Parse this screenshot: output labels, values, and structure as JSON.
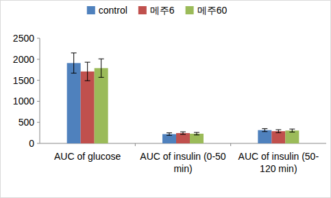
{
  "chart_data": {
    "type": "bar",
    "categories": [
      "AUC of glucose",
      "AUC of insulin (0-50 min)",
      "AUC of insulin (50-120 min)"
    ],
    "series": [
      {
        "name": "control",
        "color": "#4f81bd",
        "values": [
          1910,
          220,
          315
        ],
        "errors": [
          240,
          30,
          35
        ]
      },
      {
        "name": "메주6",
        "color": "#c0504d",
        "values": [
          1710,
          245,
          290
        ],
        "errors": [
          220,
          30,
          35
        ]
      },
      {
        "name": "메주60",
        "color": "#9bbb59",
        "values": [
          1790,
          230,
          305
        ],
        "errors": [
          220,
          30,
          35
        ]
      }
    ],
    "ylim": [
      0,
      2500
    ],
    "yticks": [
      0,
      500,
      1000,
      1500,
      2000,
      2500
    ],
    "grid": false,
    "legend": "top"
  }
}
